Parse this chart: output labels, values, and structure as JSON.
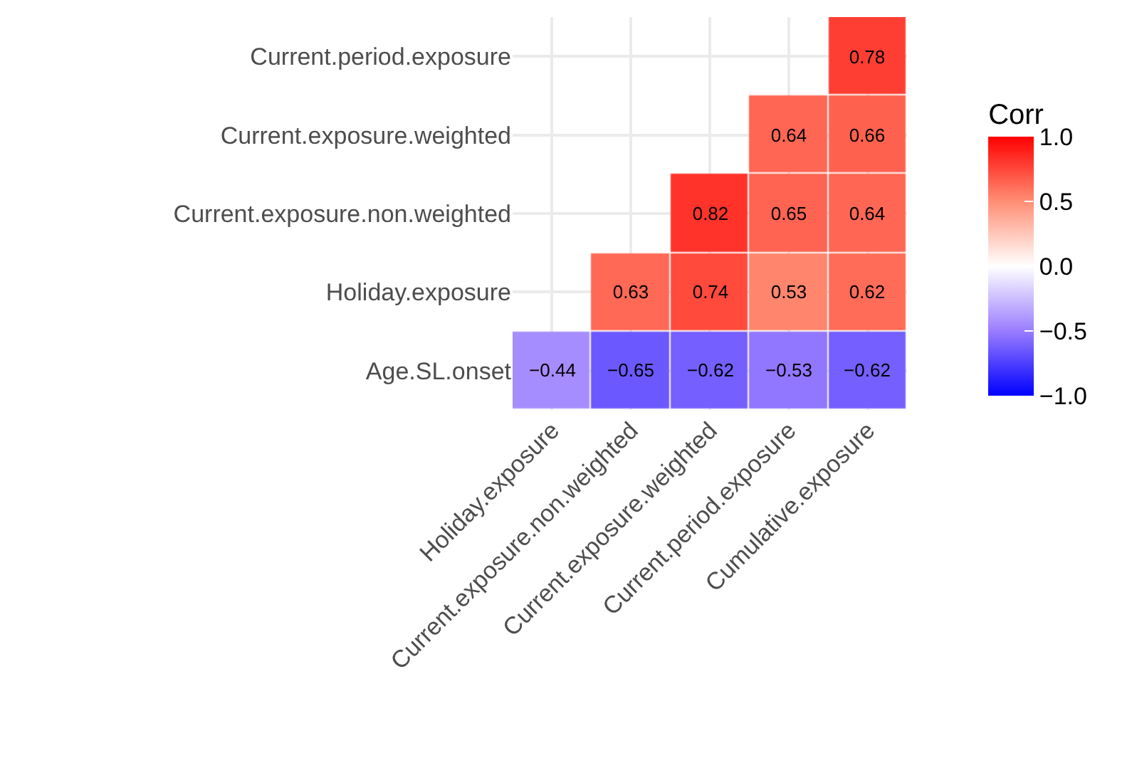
{
  "chart_data": {
    "type": "heatmap",
    "categories": [
      "Holiday.exposure",
      "Current.exposure.non.weighted",
      "Current.exposure.weighted",
      "Current.period.exposure",
      "Cumulative.exposure"
    ],
    "y_categories": [
      "Current.period.exposure",
      "Current.exposure.weighted",
      "Current.exposure.non.weighted",
      "Holiday.exposure",
      "Age.SL.onset"
    ],
    "cells": [
      [
        null,
        null,
        null,
        null,
        0.78
      ],
      [
        null,
        null,
        null,
        0.64,
        0.66
      ],
      [
        null,
        null,
        0.82,
        0.65,
        0.64
      ],
      [
        null,
        0.63,
        0.74,
        0.53,
        0.62
      ],
      [
        -0.44,
        -0.65,
        -0.62,
        -0.53,
        -0.62
      ]
    ],
    "cell_labels": [
      [
        null,
        null,
        null,
        null,
        "0.78"
      ],
      [
        null,
        null,
        null,
        "0.64",
        "0.66"
      ],
      [
        null,
        null,
        "0.82",
        "0.65",
        "0.64"
      ],
      [
        null,
        "0.63",
        "0.74",
        "0.53",
        "0.62"
      ],
      [
        "−0.44",
        "−0.65",
        "−0.62",
        "−0.53",
        "−0.62"
      ]
    ],
    "clabel": "Corr",
    "clim": [
      -1,
      1
    ],
    "cticks": [
      {
        "value": -1,
        "label": "−1.0"
      },
      {
        "value": -0.5,
        "label": "−0.5"
      },
      {
        "value": 0,
        "label": "0.0"
      },
      {
        "value": 0.5,
        "label": "0.5"
      },
      {
        "value": 1,
        "label": "1.0"
      }
    ],
    "grid": true
  }
}
